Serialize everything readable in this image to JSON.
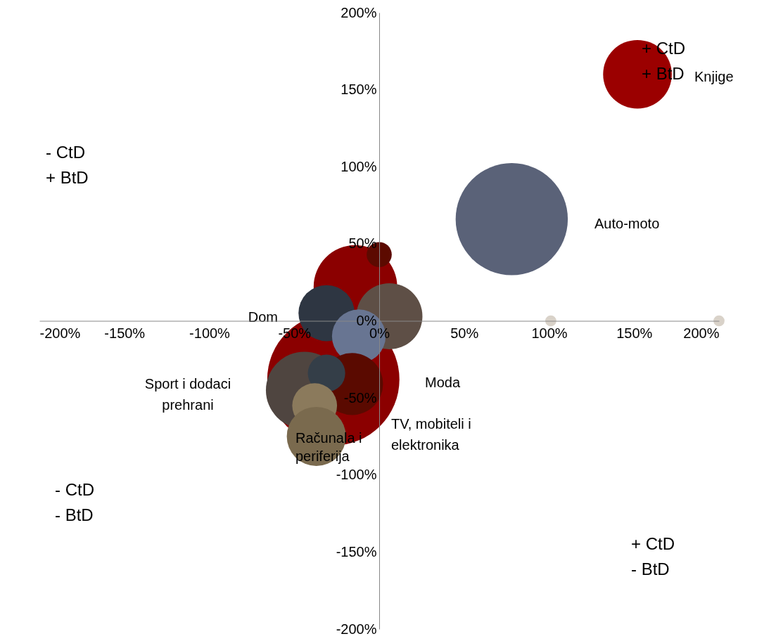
{
  "chart_data": {
    "type": "bubble",
    "x": [
      -27,
      -44,
      -14,
      0,
      -31,
      6,
      -12,
      -16,
      -31,
      -38,
      -37,
      78,
      152,
      101,
      200
    ],
    "values": [
      -38,
      -45,
      22,
      43,
      5,
      3,
      -10,
      -41,
      -34,
      -55,
      -75,
      66,
      160,
      0,
      0
    ],
    "sizes": [
      1,
      0.34,
      0.4,
      0.036,
      0.18,
      0.25,
      0.165,
      0.22,
      0.08,
      0.115,
      0.2,
      0.72,
      0.27,
      0.007,
      0.007
    ],
    "colors": [
      "#8b0000",
      "#4f4540",
      "#8b0000",
      "#5c0a00",
      "#2e3642",
      "#5e4f46",
      "#687592",
      "#5a0a00",
      "#343e48",
      "#8b7a5c",
      "#7a6a4e",
      "#5a6278",
      "#9b0000",
      "#d9d2c9",
      "#d9d2c9"
    ],
    "xlim": [
      -200,
      200
    ],
    "xticks": [
      {
        "value": -200,
        "label": "-200%"
      },
      {
        "value": -150,
        "label": "-150%"
      },
      {
        "value": -100,
        "label": "-100%"
      },
      {
        "value": -50,
        "label": "-50%"
      },
      {
        "value": 0,
        "label": "0%"
      },
      {
        "value": 50,
        "label": "50%"
      },
      {
        "value": 100,
        "label": "100%"
      },
      {
        "value": 150,
        "label": "150%"
      },
      {
        "value": 200,
        "label": "200%"
      }
    ],
    "ylim": [
      -200,
      200
    ],
    "yticks": [
      {
        "value": -200,
        "label": "-200%"
      },
      {
        "value": -150,
        "label": "-150%"
      },
      {
        "value": -100,
        "label": "-100%"
      },
      {
        "value": -50,
        "label": "-50%"
      },
      {
        "value": 0,
        "label": "0%"
      },
      {
        "value": 50,
        "label": "50%"
      },
      {
        "value": 100,
        "label": "100%"
      },
      {
        "value": 150,
        "label": "150%"
      },
      {
        "value": 200,
        "label": "200%"
      }
    ],
    "grid": false,
    "legend": false,
    "annotations": [
      "- CtD\n+ BtD",
      "+ CtD\n+ BtD",
      "- CtD\n- BtD",
      "+ CtD\n- BtD",
      "Knjige",
      "Auto-moto",
      "Dom",
      "Moda",
      "Sport i dodaci\nprehrani",
      "TV, mobiteli i\nelektronika",
      "Računala i\nperiferija"
    ]
  }
}
